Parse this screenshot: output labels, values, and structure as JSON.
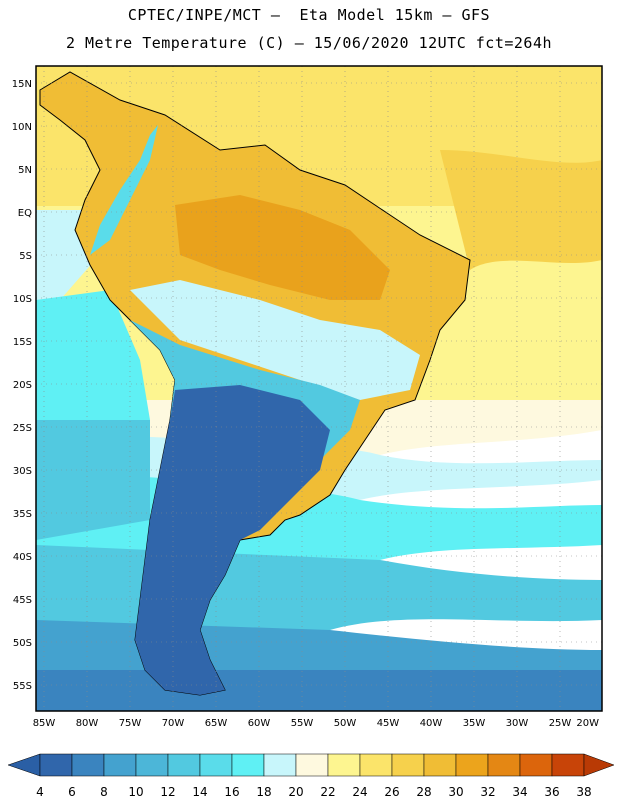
{
  "header": {
    "title_line1": "CPTEC/INPE/MCT –  Eta Model 15km – GFS",
    "title_line2": "2 Metre Temperature (C) – 15/06/2020 12UTC fct=264h"
  },
  "axes": {
    "lat_labels": [
      "15N",
      "10N",
      "5N",
      "EQ",
      "5S",
      "10S",
      "15S",
      "20S",
      "25S",
      "30S",
      "35S",
      "40S",
      "45S",
      "50S",
      "55S"
    ],
    "lon_labels": [
      "85W",
      "80W",
      "75W",
      "70W",
      "65W",
      "60W",
      "55W",
      "50W",
      "45W",
      "40W",
      "35W",
      "30W",
      "25W",
      "20W"
    ]
  },
  "colorbar": {
    "levels": [
      "4",
      "6",
      "8",
      "10",
      "12",
      "14",
      "16",
      "18",
      "20",
      "22",
      "24",
      "26",
      "28",
      "30",
      "32",
      "34",
      "36",
      "38"
    ],
    "colors": [
      "#3066ab",
      "#3a84bf",
      "#44a2cf",
      "#4cb6d8",
      "#52c9e0",
      "#5adcea",
      "#5ff0f4",
      "#c8f6fb",
      "#fef9df",
      "#fdf590",
      "#fbe46a",
      "#f6d14c",
      "#f0bd35",
      "#eca41c",
      "#e48714",
      "#dc650c",
      "#c84408"
    ],
    "under_color": "#2a5fa5",
    "over_color": "#b93a05"
  },
  "map": {
    "ocean_tropical_color": "#fbe46a",
    "ocean_warm_color": "#f6d14c",
    "land_hot_color": "#e9a21c",
    "land_warm_color": "#f0bd35",
    "cool_south_color": "#3066ab"
  }
}
